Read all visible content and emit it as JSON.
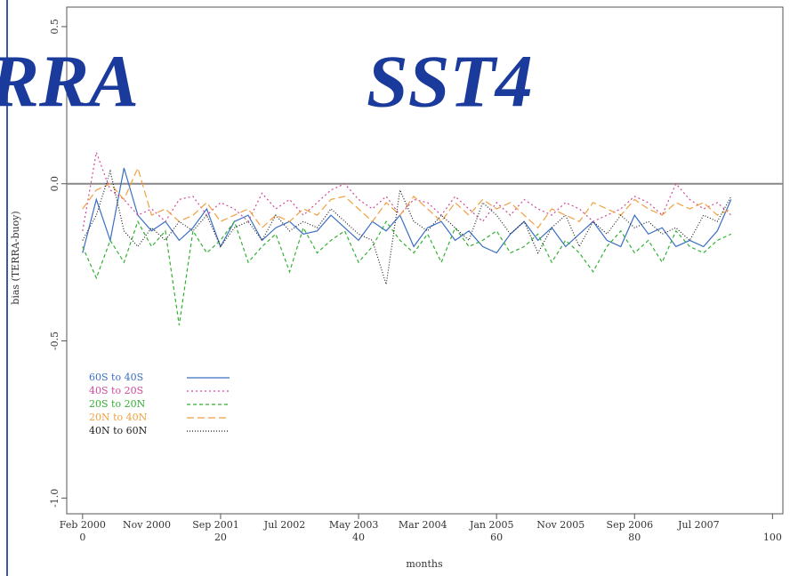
{
  "chart_data": {
    "type": "line",
    "title_left": "RRA",
    "title_right": "SST4",
    "ylabel": "bias (TERRA-buoy)",
    "xlabel": "months",
    "x": [
      0,
      2,
      4,
      6,
      8,
      10,
      12,
      14,
      16,
      18,
      20,
      22,
      24,
      26,
      28,
      30,
      32,
      34,
      36,
      38,
      40,
      42,
      44,
      46,
      48,
      50,
      52,
      54,
      56,
      58,
      60,
      62,
      64,
      66,
      68,
      70,
      72,
      74,
      76,
      78,
      80,
      82,
      84,
      86,
      88,
      90,
      92,
      94
    ],
    "series": [
      {
        "name": "60S to 40S",
        "color": "#3a6fc4",
        "dash": "none",
        "values": [
          -0.22,
          -0.05,
          -0.18,
          0.05,
          -0.1,
          -0.15,
          -0.12,
          -0.18,
          -0.14,
          -0.08,
          -0.2,
          -0.12,
          -0.1,
          -0.18,
          -0.14,
          -0.12,
          -0.16,
          -0.15,
          -0.1,
          -0.14,
          -0.18,
          -0.12,
          -0.15,
          -0.1,
          -0.2,
          -0.14,
          -0.12,
          -0.18,
          -0.15,
          -0.2,
          -0.22,
          -0.16,
          -0.12,
          -0.18,
          -0.14,
          -0.2,
          -0.16,
          -0.12,
          -0.18,
          -0.2,
          -0.1,
          -0.16,
          -0.14,
          -0.2,
          -0.18,
          -0.2,
          -0.15,
          -0.05
        ]
      },
      {
        "name": "40S to 20S",
        "color": "#d04a9a",
        "dash": "2,3",
        "values": [
          -0.15,
          0.1,
          -0.02,
          -0.05,
          -0.1,
          -0.08,
          -0.12,
          -0.05,
          -0.04,
          -0.1,
          -0.06,
          -0.08,
          -0.12,
          -0.03,
          -0.08,
          -0.05,
          -0.1,
          -0.06,
          -0.02,
          0.0,
          -0.05,
          -0.08,
          -0.04,
          -0.1,
          -0.05,
          -0.06,
          -0.1,
          -0.04,
          -0.08,
          -0.12,
          -0.06,
          -0.1,
          -0.05,
          -0.08,
          -0.1,
          -0.06,
          -0.08,
          -0.12,
          -0.1,
          -0.08,
          -0.04,
          -0.06,
          -0.1,
          0.0,
          -0.05,
          -0.08,
          -0.06,
          -0.1
        ]
      },
      {
        "name": "20S to 20N",
        "color": "#33b033",
        "dash": "4,3",
        "values": [
          -0.2,
          -0.3,
          -0.18,
          -0.25,
          -0.12,
          -0.2,
          -0.15,
          -0.45,
          -0.15,
          -0.22,
          -0.18,
          -0.12,
          -0.25,
          -0.2,
          -0.16,
          -0.28,
          -0.14,
          -0.22,
          -0.18,
          -0.15,
          -0.25,
          -0.2,
          -0.12,
          -0.18,
          -0.22,
          -0.16,
          -0.25,
          -0.14,
          -0.2,
          -0.18,
          -0.15,
          -0.22,
          -0.2,
          -0.16,
          -0.25,
          -0.18,
          -0.22,
          -0.28,
          -0.2,
          -0.15,
          -0.22,
          -0.18,
          -0.25,
          -0.15,
          -0.2,
          -0.22,
          -0.18,
          -0.16
        ]
      },
      {
        "name": "20N to 40N",
        "color": "#f0a040",
        "dash": "8,4",
        "values": [
          -0.08,
          -0.02,
          0.0,
          -0.05,
          0.05,
          -0.1,
          -0.08,
          -0.12,
          -0.1,
          -0.06,
          -0.12,
          -0.1,
          -0.08,
          -0.14,
          -0.1,
          -0.12,
          -0.08,
          -0.1,
          -0.05,
          -0.04,
          -0.08,
          -0.12,
          -0.06,
          -0.1,
          -0.04,
          -0.08,
          -0.12,
          -0.06,
          -0.1,
          -0.05,
          -0.08,
          -0.06,
          -0.1,
          -0.14,
          -0.08,
          -0.1,
          -0.12,
          -0.06,
          -0.08,
          -0.1,
          -0.05,
          -0.08,
          -0.1,
          -0.06,
          -0.08,
          -0.06,
          -0.1,
          -0.08
        ]
      },
      {
        "name": "40N to 60N",
        "color": "#222222",
        "dash": "1,2",
        "values": [
          -0.18,
          -0.1,
          0.04,
          -0.15,
          -0.2,
          -0.14,
          -0.18,
          -0.12,
          -0.15,
          -0.1,
          -0.2,
          -0.14,
          -0.12,
          -0.18,
          -0.1,
          -0.15,
          -0.12,
          -0.14,
          -0.08,
          -0.12,
          -0.16,
          -0.18,
          -0.32,
          -0.02,
          -0.12,
          -0.15,
          -0.1,
          -0.14,
          -0.18,
          -0.06,
          -0.1,
          -0.16,
          -0.12,
          -0.22,
          -0.14,
          -0.1,
          -0.2,
          -0.12,
          -0.16,
          -0.1,
          -0.14,
          -0.12,
          -0.16,
          -0.14,
          -0.18,
          -0.1,
          -0.12,
          -0.04
        ]
      }
    ],
    "xlim": [
      -2.3,
      101.5
    ],
    "ylim": [
      -1.05,
      0.562
    ],
    "xticks": [
      0,
      20,
      40,
      60,
      80,
      100
    ],
    "date_ticks": [
      {
        "value": 0,
        "label": "Feb 2000"
      },
      {
        "value": 9.3,
        "label": "Nov 2000"
      },
      {
        "value": 19.3,
        "label": "Sep 2001"
      },
      {
        "value": 29.3,
        "label": "Jul 2002"
      },
      {
        "value": 39.3,
        "label": "May 2003"
      },
      {
        "value": 49.3,
        "label": "Mar 2004"
      },
      {
        "value": 59.3,
        "label": "Jan 2005"
      },
      {
        "value": 69.3,
        "label": "Nov 2005"
      },
      {
        "value": 79.3,
        "label": "Sep 2006"
      },
      {
        "value": 89.3,
        "label": "Jul 2007"
      }
    ],
    "yticks": [
      0.5,
      {
        "value": 0,
        "label": "0.0"
      },
      -0.5,
      {
        "value": -1,
        "label": "-1.0"
      }
    ],
    "reference_line": 0,
    "legend": "lower left",
    "grid": false
  }
}
